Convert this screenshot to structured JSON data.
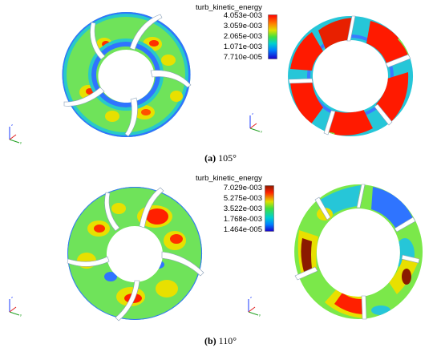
{
  "panels": [
    {
      "id": "a",
      "legend_title": "turb_kinetic_energy",
      "legend_values": [
        "4.053e-003",
        "3.059e-003",
        "2.065e-003",
        "1.071e-003",
        "7.710e-005"
      ],
      "caption_letter": "(a)",
      "caption_angle": "105°"
    },
    {
      "id": "b",
      "legend_title": "turb_kinetic_energy",
      "legend_values": [
        "7.029e-003",
        "5.275e-003",
        "3.522e-003",
        "1.768e-003",
        "1.464e-005"
      ],
      "caption_letter": "(b)",
      "caption_angle": "110°"
    }
  ],
  "axis_triad_labels": {
    "x": "x",
    "y": "y",
    "z": "z"
  },
  "colors": {
    "colormap": [
      "#1a00c8",
      "#0080ff",
      "#00d0d0",
      "#00e070",
      "#80e000",
      "#e0e000",
      "#ff8000",
      "#ff0000"
    ],
    "high": "#ff1a00",
    "mid": "#7de84a",
    "low": "#1e6bff",
    "dark_high": "#8b1a00"
  }
}
